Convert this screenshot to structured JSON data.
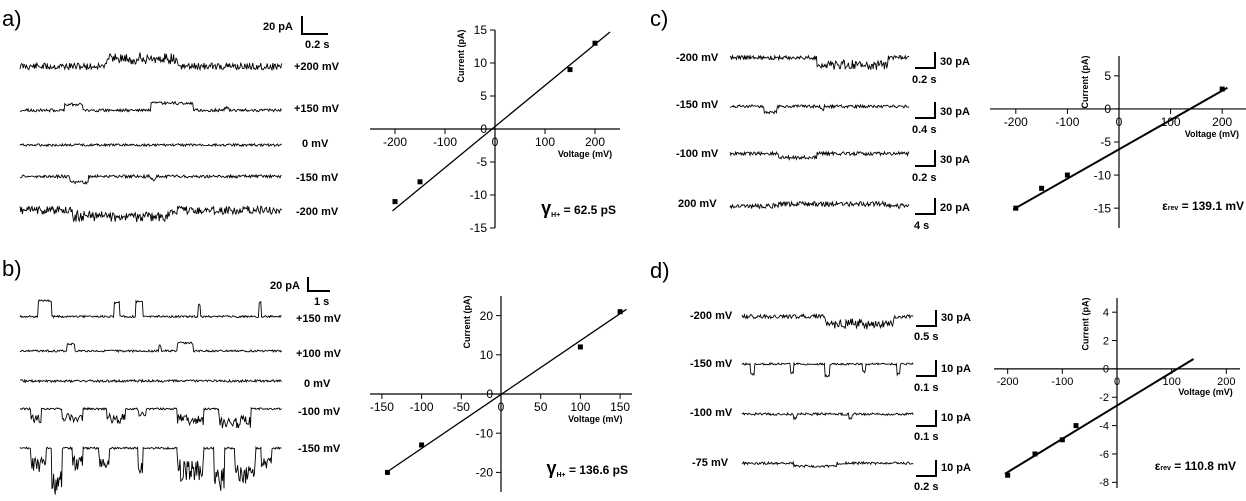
{
  "panels": [
    {
      "letter": "a)",
      "scalebar": {
        "current": "20 pA",
        "time": "0.2 s"
      },
      "traces": [
        {
          "voltage": "+200 mV",
          "style": "noisy_up",
          "seed": 11
        },
        {
          "voltage": "+150 mV",
          "style": "bursts_up",
          "seed": 23
        },
        {
          "voltage": "0 mV",
          "style": "flat",
          "seed": 31
        },
        {
          "voltage": "-150 mV",
          "style": "small_down",
          "seed": 47
        },
        {
          "voltage": "-200 mV",
          "style": "noisy_down",
          "seed": 53
        }
      ]
    },
    {
      "letter": "b)",
      "scalebar": {
        "current": "20 pA",
        "time": "1 s"
      },
      "traces": [
        {
          "voltage": "+150 mV",
          "style": "spikes_up",
          "seed": 61
        },
        {
          "voltage": "+100 mV",
          "style": "few_up",
          "seed": 67
        },
        {
          "voltage": "0 mV",
          "style": "flat",
          "seed": 71
        },
        {
          "voltage": "-100 mV",
          "style": "spikes_down",
          "seed": 79
        },
        {
          "voltage": "-150 mV",
          "style": "big_down",
          "seed": 83
        }
      ]
    },
    {
      "letter": "c)",
      "traces": [
        {
          "voltage": "-200 mV",
          "scale_current": "30 pA",
          "scale_time": "0.2 s",
          "style": "noisy_down_c",
          "seed": 89
        },
        {
          "voltage": "-150 mV",
          "scale_current": "30 pA",
          "scale_time": "0.4 s",
          "style": "small_down",
          "seed": 97
        },
        {
          "voltage": "-100 mV",
          "scale_current": "30 pA",
          "scale_time": "0.2 s",
          "style": "step_down",
          "seed": 101
        },
        {
          "voltage": "200 mV",
          "scale_current": "20 pA",
          "scale_time": "4 s",
          "style": "block_up",
          "seed": 103
        }
      ]
    },
    {
      "letter": "d)",
      "traces": [
        {
          "voltage": "-200 mV",
          "scale_current": "30 pA",
          "scale_time": "0.5 s",
          "style": "noisy_down_c",
          "seed": 107
        },
        {
          "voltage": "-150 mV",
          "scale_current": "10 pA",
          "scale_time": "0.1 s",
          "style": "spikes_down_small",
          "seed": 109
        },
        {
          "voltage": "-100 mV",
          "scale_current": "10 pA",
          "scale_time": "0.1 s",
          "style": "thin",
          "seed": 113
        },
        {
          "voltage": "-75 mV",
          "scale_current": "10 pA",
          "scale_time": "0.2 s",
          "style": "thin_down",
          "seed": 127
        }
      ]
    }
  ],
  "chart_data": [
    {
      "type": "scatter",
      "panel": "a)",
      "xlabel": "Voltage (mV)",
      "ylabel": "Current (pA)",
      "xlim": [
        -250,
        250
      ],
      "ylim": [
        -15,
        15
      ],
      "xticks": [
        -200,
        -100,
        0,
        100,
        200
      ],
      "yticks": [
        -15,
        -10,
        -5,
        0,
        5,
        10,
        15
      ],
      "points": [
        {
          "x": -200,
          "y": -11
        },
        {
          "x": -150,
          "y": -8
        },
        {
          "x": 150,
          "y": 9
        },
        {
          "x": 200,
          "y": 13
        }
      ],
      "fit": {
        "x": [
          -205,
          230
        ],
        "y": [
          -12.4,
          14.7
        ]
      },
      "annotation": {
        "symbol": "γ",
        "sub": "H+",
        "text": " = 62.5 pS"
      }
    },
    {
      "type": "scatter",
      "panel": "b)",
      "xlabel": "Voltage (mV)",
      "ylabel": "Current (pA)",
      "xlim": [
        -165,
        165
      ],
      "ylim": [
        -25,
        25
      ],
      "xticks": [
        -150,
        -100,
        -50,
        0,
        50,
        100,
        150
      ],
      "yticks": [
        -20,
        -10,
        0,
        10,
        20
      ],
      "points": [
        {
          "x": -143,
          "y": -20
        },
        {
          "x": -100,
          "y": -13
        },
        {
          "x": 100,
          "y": 12
        },
        {
          "x": 150,
          "y": 21
        }
      ],
      "fit": {
        "x": [
          -143,
          158
        ],
        "y": [
          -19.8,
          21.6
        ]
      },
      "annotation": {
        "symbol": "γ",
        "sub": "H+",
        "text": " = 136.6 pS"
      }
    },
    {
      "type": "scatter",
      "panel": "c)",
      "xlabel": "Voltage (mV)",
      "ylabel": "Current (pA)",
      "xlim": [
        -250,
        250
      ],
      "ylim": [
        -18,
        8
      ],
      "xticks": [
        -200,
        -100,
        0,
        100,
        200
      ],
      "yticks": [
        -15,
        -10,
        -5,
        0,
        5
      ],
      "points": [
        {
          "x": -200,
          "y": -15
        },
        {
          "x": -150,
          "y": -12
        },
        {
          "x": -100,
          "y": -10
        },
        {
          "x": 200,
          "y": 3
        }
      ],
      "fit": {
        "x": [
          -205,
          210
        ],
        "y": [
          -15.2,
          3.2
        ]
      },
      "annotation": {
        "symbol": "ε",
        "sub": "rev",
        "text": " = 139.1 mV"
      }
    },
    {
      "type": "scatter",
      "panel": "d)",
      "xlabel": "Voltage (mV)",
      "ylabel": "Current (pA)",
      "xlim": [
        -225,
        225
      ],
      "ylim": [
        -8.4,
        5
      ],
      "xticks": [
        -200,
        -100,
        0,
        100,
        200
      ],
      "yticks": [
        -8,
        -6,
        -4,
        -2,
        0,
        2,
        4
      ],
      "points": [
        {
          "x": -200,
          "y": -7.5
        },
        {
          "x": -150,
          "y": -6
        },
        {
          "x": -100,
          "y": -5
        },
        {
          "x": -75,
          "y": -4
        }
      ],
      "fit": {
        "x": [
          -205,
          140
        ],
        "y": [
          -7.4,
          0.7
        ]
      },
      "annotation": {
        "symbol": "ε",
        "sub": "rev",
        "text": " = 110.8 mV"
      }
    }
  ]
}
